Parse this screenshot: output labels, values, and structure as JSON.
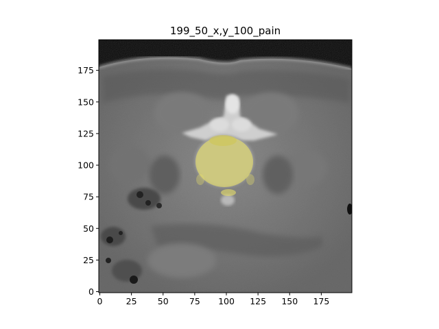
{
  "figure": {
    "title": "199_50_x,y_100_pain",
    "x_axis": {
      "range": [
        0,
        200
      ],
      "ticks": [
        0,
        25,
        50,
        75,
        100,
        125,
        150,
        175
      ]
    },
    "y_axis": {
      "range": [
        0,
        200
      ],
      "ticks": [
        0,
        25,
        50,
        75,
        100,
        125,
        150,
        175
      ],
      "direction": "bottom-to-top"
    },
    "image": {
      "kind": "axial CT slice (grayscale)",
      "overlay_color": "#e8e06a",
      "background_color": "#6e6e6e",
      "overlay": "semi-transparent yellow segmentation mask over vertebral body"
    }
  }
}
